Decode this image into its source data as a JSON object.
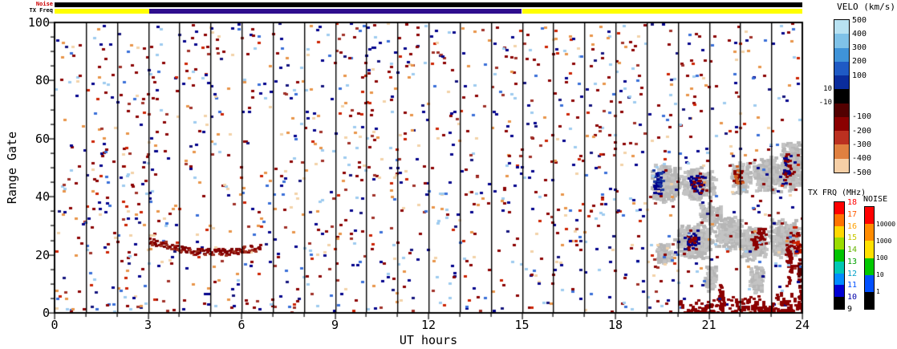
{
  "page": {
    "background": "#ffffff"
  },
  "axes": {
    "x": {
      "label": "UT hours",
      "min": 0,
      "max": 24,
      "ticks": [
        0,
        3,
        6,
        9,
        12,
        15,
        18,
        21,
        24
      ]
    },
    "y": {
      "label": "Range Gate",
      "min": 0,
      "max": 100,
      "ticks": [
        0,
        20,
        40,
        60,
        80,
        100
      ]
    }
  },
  "strips": {
    "noise": {
      "label": "Noise",
      "label_color": "#cc0000",
      "segments": [
        {
          "from": 0,
          "to": 24,
          "color": "#000000"
        }
      ]
    },
    "tx_freq": {
      "label": "TX Freq",
      "label_color": "#000000",
      "segments": [
        {
          "from": 0,
          "to": 3.05,
          "color": "#ffff00"
        },
        {
          "from": 3.05,
          "to": 15,
          "color": "#2f0e8e"
        },
        {
          "from": 15,
          "to": 24,
          "color": "#ffff00"
        }
      ]
    }
  },
  "colorbars": {
    "velocity": {
      "title": "VELO (km/s)",
      "segments": [
        "#b8e2f2",
        "#7fc2e8",
        "#3f93d8",
        "#1f5ac4",
        "#0a2c9c",
        "#000000",
        "#520000",
        "#8b0000",
        "#bb3020",
        "#e08040",
        "#f6cfa6"
      ],
      "right_labels": [
        {
          "text": "500",
          "slot": 0
        },
        {
          "text": "400",
          "slot": 1
        },
        {
          "text": "300",
          "slot": 2
        },
        {
          "text": "200",
          "slot": 3
        },
        {
          "text": "100",
          "slot": 4
        },
        {
          "text": "-100",
          "slot": 7
        },
        {
          "text": "-200",
          "slot": 8
        },
        {
          "text": "-300",
          "slot": 9
        },
        {
          "text": "-400",
          "slot": 10
        },
        {
          "text": "-500",
          "slot": 11
        }
      ],
      "left_labels": [
        {
          "text": "10",
          "slot": 5
        },
        {
          "text": "-10",
          "slot": 6
        }
      ]
    },
    "tx_freq": {
      "title": "TX FRQ (MHz)",
      "segments": [
        "#ff0000",
        "#ff7300",
        "#ffd800",
        "#9bdc00",
        "#00c400",
        "#00c8b4",
        "#008cff",
        "#0000d2",
        "#000000"
      ],
      "labels": [
        {
          "text": "18",
          "color": "#ff0000"
        },
        {
          "text": "17",
          "color": "#ff5a00"
        },
        {
          "text": "16",
          "color": "#ffa000"
        },
        {
          "text": "15",
          "color": "#c8c800"
        },
        {
          "text": "14",
          "color": "#64b400"
        },
        {
          "text": "13",
          "color": "#00a000"
        },
        {
          "text": "12",
          "color": "#00a0c8"
        },
        {
          "text": "11",
          "color": "#0050ff"
        },
        {
          "text": "10",
          "color": "#0000aa"
        },
        {
          "text": "9",
          "color": "#000000"
        }
      ]
    },
    "noise": {
      "title": "NOISE",
      "segments": [
        "#ff0000",
        "#ff8c00",
        "#ffe100",
        "#00c800",
        "#0050ff",
        "#000000"
      ],
      "labels": [
        "10000",
        "1000",
        "100",
        "10",
        "1"
      ]
    }
  },
  "chart_data": {
    "type": "scatter",
    "title": "",
    "xlabel": "UT hours",
    "ylabel": "Range Gate",
    "xlim": [
      0,
      24
    ],
    "ylim": [
      0,
      100
    ],
    "x_ticks": [
      0,
      3,
      6,
      9,
      12,
      15,
      18,
      21,
      24
    ],
    "y_ticks": [
      0,
      20,
      40,
      60,
      80,
      100
    ],
    "hour_grid_lines": true,
    "colorbar_velocity_km_s": [
      500,
      400,
      300,
      200,
      100,
      10,
      -10,
      -100,
      -200,
      -300,
      -400,
      -500
    ],
    "colorbar_tx_frq_mhz": [
      18,
      17,
      16,
      15,
      14,
      13,
      12,
      11,
      10,
      9
    ],
    "colorbar_noise_levels": [
      10000,
      1000,
      100,
      10,
      1
    ],
    "noise_strip_hours": [
      {
        "from": 0,
        "to": 24,
        "color": "#000000"
      }
    ],
    "tx_freq_strip_hours": [
      {
        "from": 0,
        "to": 3,
        "color": "#ffff00"
      },
      {
        "from": 3,
        "to": 15,
        "color": "#2f0e8e"
      },
      {
        "from": 15,
        "to": 24,
        "color": "#ffff00"
      }
    ],
    "render": {
      "seed": 1337,
      "background": {
        "count": 1500,
        "palette": [
          [
            "#8b0000",
            22
          ],
          [
            "#a03028",
            8
          ],
          [
            "#00008b",
            18
          ],
          [
            "#3a6fd8",
            8
          ],
          [
            "#9ecbef",
            12
          ],
          [
            "#e8944a",
            10
          ],
          [
            "#f2d2a8",
            8
          ],
          [
            "#cc2200",
            7
          ],
          [
            "#14147e",
            7
          ]
        ]
      },
      "gray_blobs": [
        [
          19.6,
          45,
          0.5,
          7,
          260
        ],
        [
          20.65,
          45,
          0.55,
          6,
          260
        ],
        [
          22.0,
          47,
          0.35,
          6,
          160
        ],
        [
          22.85,
          48,
          0.5,
          7,
          260
        ],
        [
          23.65,
          51,
          0.4,
          9,
          280
        ],
        [
          19.55,
          21,
          0.3,
          4,
          90
        ],
        [
          20.5,
          25,
          0.65,
          6,
          300
        ],
        [
          21.6,
          28,
          0.5,
          6,
          220
        ],
        [
          22.4,
          24,
          0.5,
          6,
          220
        ],
        [
          23.4,
          26,
          0.55,
          7,
          260
        ],
        [
          21.0,
          34,
          0.4,
          4,
          110
        ],
        [
          22.5,
          12,
          0.25,
          5,
          80
        ],
        [
          21.0,
          12,
          0.2,
          5,
          70
        ]
      ],
      "clusters": [
        [
          19.35,
          45,
          0.18,
          5,
          45,
          [
            "#00008b",
            "#1a3aa0"
          ]
        ],
        [
          20.6,
          45,
          0.3,
          4,
          55,
          [
            "#8b0000",
            "#00008b"
          ]
        ],
        [
          21.9,
          47,
          0.2,
          4,
          30,
          [
            "#8b0000",
            "#d06020"
          ]
        ],
        [
          23.5,
          50,
          0.25,
          6,
          40,
          [
            "#8b0000",
            "#00008b"
          ]
        ],
        [
          20.4,
          25,
          0.3,
          5,
          45,
          [
            "#8b0000",
            "#00008b"
          ]
        ],
        [
          22.6,
          26,
          0.3,
          5,
          40,
          [
            "#8b0000"
          ]
        ],
        [
          23.8,
          24,
          0.15,
          8,
          35,
          [
            "#8b0000",
            "#cc2200"
          ]
        ],
        [
          23.55,
          18,
          0.12,
          11,
          50,
          [
            "#8b0000"
          ]
        ],
        [
          21.35,
          6,
          0.1,
          5,
          35,
          [
            "#8b0000"
          ]
        ],
        [
          23.9,
          12,
          0.08,
          10,
          30,
          [
            "#8b0000",
            "#600000"
          ]
        ]
      ],
      "arc": {
        "from_hour": 3.0,
        "to_hour": 6.6,
        "base_gate": 21.5,
        "step": 0.022,
        "p": 0.8,
        "colors": [
          "#7a0000",
          "#8b0000",
          "#a03020"
        ]
      },
      "bottom_band": {
        "from_hour": 19.6,
        "to_hour": 24,
        "max_gate": 8,
        "step": 0.016,
        "peak_hour": 22.8,
        "color": "#8b0000"
      }
    }
  }
}
